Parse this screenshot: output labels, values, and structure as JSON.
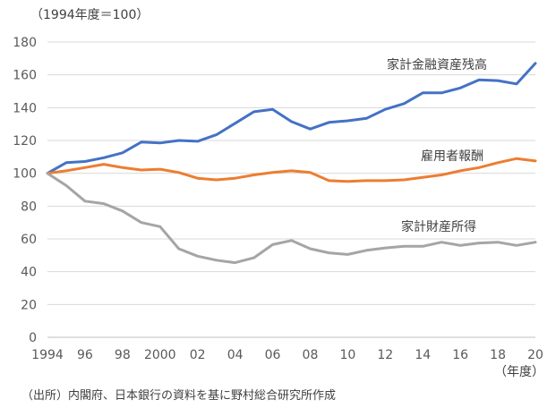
{
  "chart_data": {
    "type": "line",
    "unit_note": "（1994年度＝100）",
    "x_unit": "（年度）",
    "source": "（出所）内閣府、日本銀行の資料を基に野村総合研究所作成",
    "x": [
      1994,
      1995,
      1996,
      1997,
      1998,
      1999,
      2000,
      2001,
      2002,
      2003,
      2004,
      2005,
      2006,
      2007,
      2008,
      2009,
      2010,
      2011,
      2012,
      2013,
      2014,
      2015,
      2016,
      2017,
      2018,
      2019,
      2020
    ],
    "x_tick_values": [
      1994,
      1996,
      1998,
      2000,
      2002,
      2004,
      2006,
      2008,
      2010,
      2012,
      2014,
      2016,
      2018,
      2020
    ],
    "x_tick_labels": [
      "1994",
      "96",
      "98",
      "2000",
      "02",
      "04",
      "06",
      "08",
      "10",
      "12",
      "14",
      "16",
      "18",
      "20"
    ],
    "ylim": [
      0,
      180
    ],
    "y_ticks": [
      0,
      20,
      40,
      60,
      80,
      100,
      120,
      140,
      160,
      180
    ],
    "grid": true,
    "series": [
      {
        "name": "家計金融資産残高",
        "color": "#4472C4",
        "values": [
          100,
          106.5,
          107.2,
          109.5,
          112.5,
          119,
          118.5,
          120,
          119.5,
          123.5,
          130.5,
          137.5,
          139,
          131.5,
          127,
          131,
          132,
          133.5,
          139,
          142.5,
          149,
          149,
          152,
          157,
          156.5,
          154.5,
          167
        ]
      },
      {
        "name": "雇用者報酬",
        "color": "#ED7D31",
        "values": [
          100,
          101.5,
          103.5,
          105.5,
          103.5,
          102,
          102.5,
          100.5,
          97,
          96,
          97,
          99,
          100.5,
          101.5,
          100.5,
          95.5,
          95,
          95.5,
          95.5,
          96,
          97.5,
          99,
          101.5,
          103.5,
          106.5,
          109,
          107.5
        ]
      },
      {
        "name": "家計財産所得",
        "color": "#A5A5A5",
        "values": [
          100,
          92.5,
          83,
          81.5,
          77,
          70,
          67.5,
          54,
          49.5,
          47,
          45.5,
          48.5,
          56.5,
          59,
          54,
          51.5,
          50.5,
          53,
          54.5,
          55.5,
          55.5,
          58,
          56,
          57.5,
          58,
          56,
          58
        ]
      }
    ]
  }
}
